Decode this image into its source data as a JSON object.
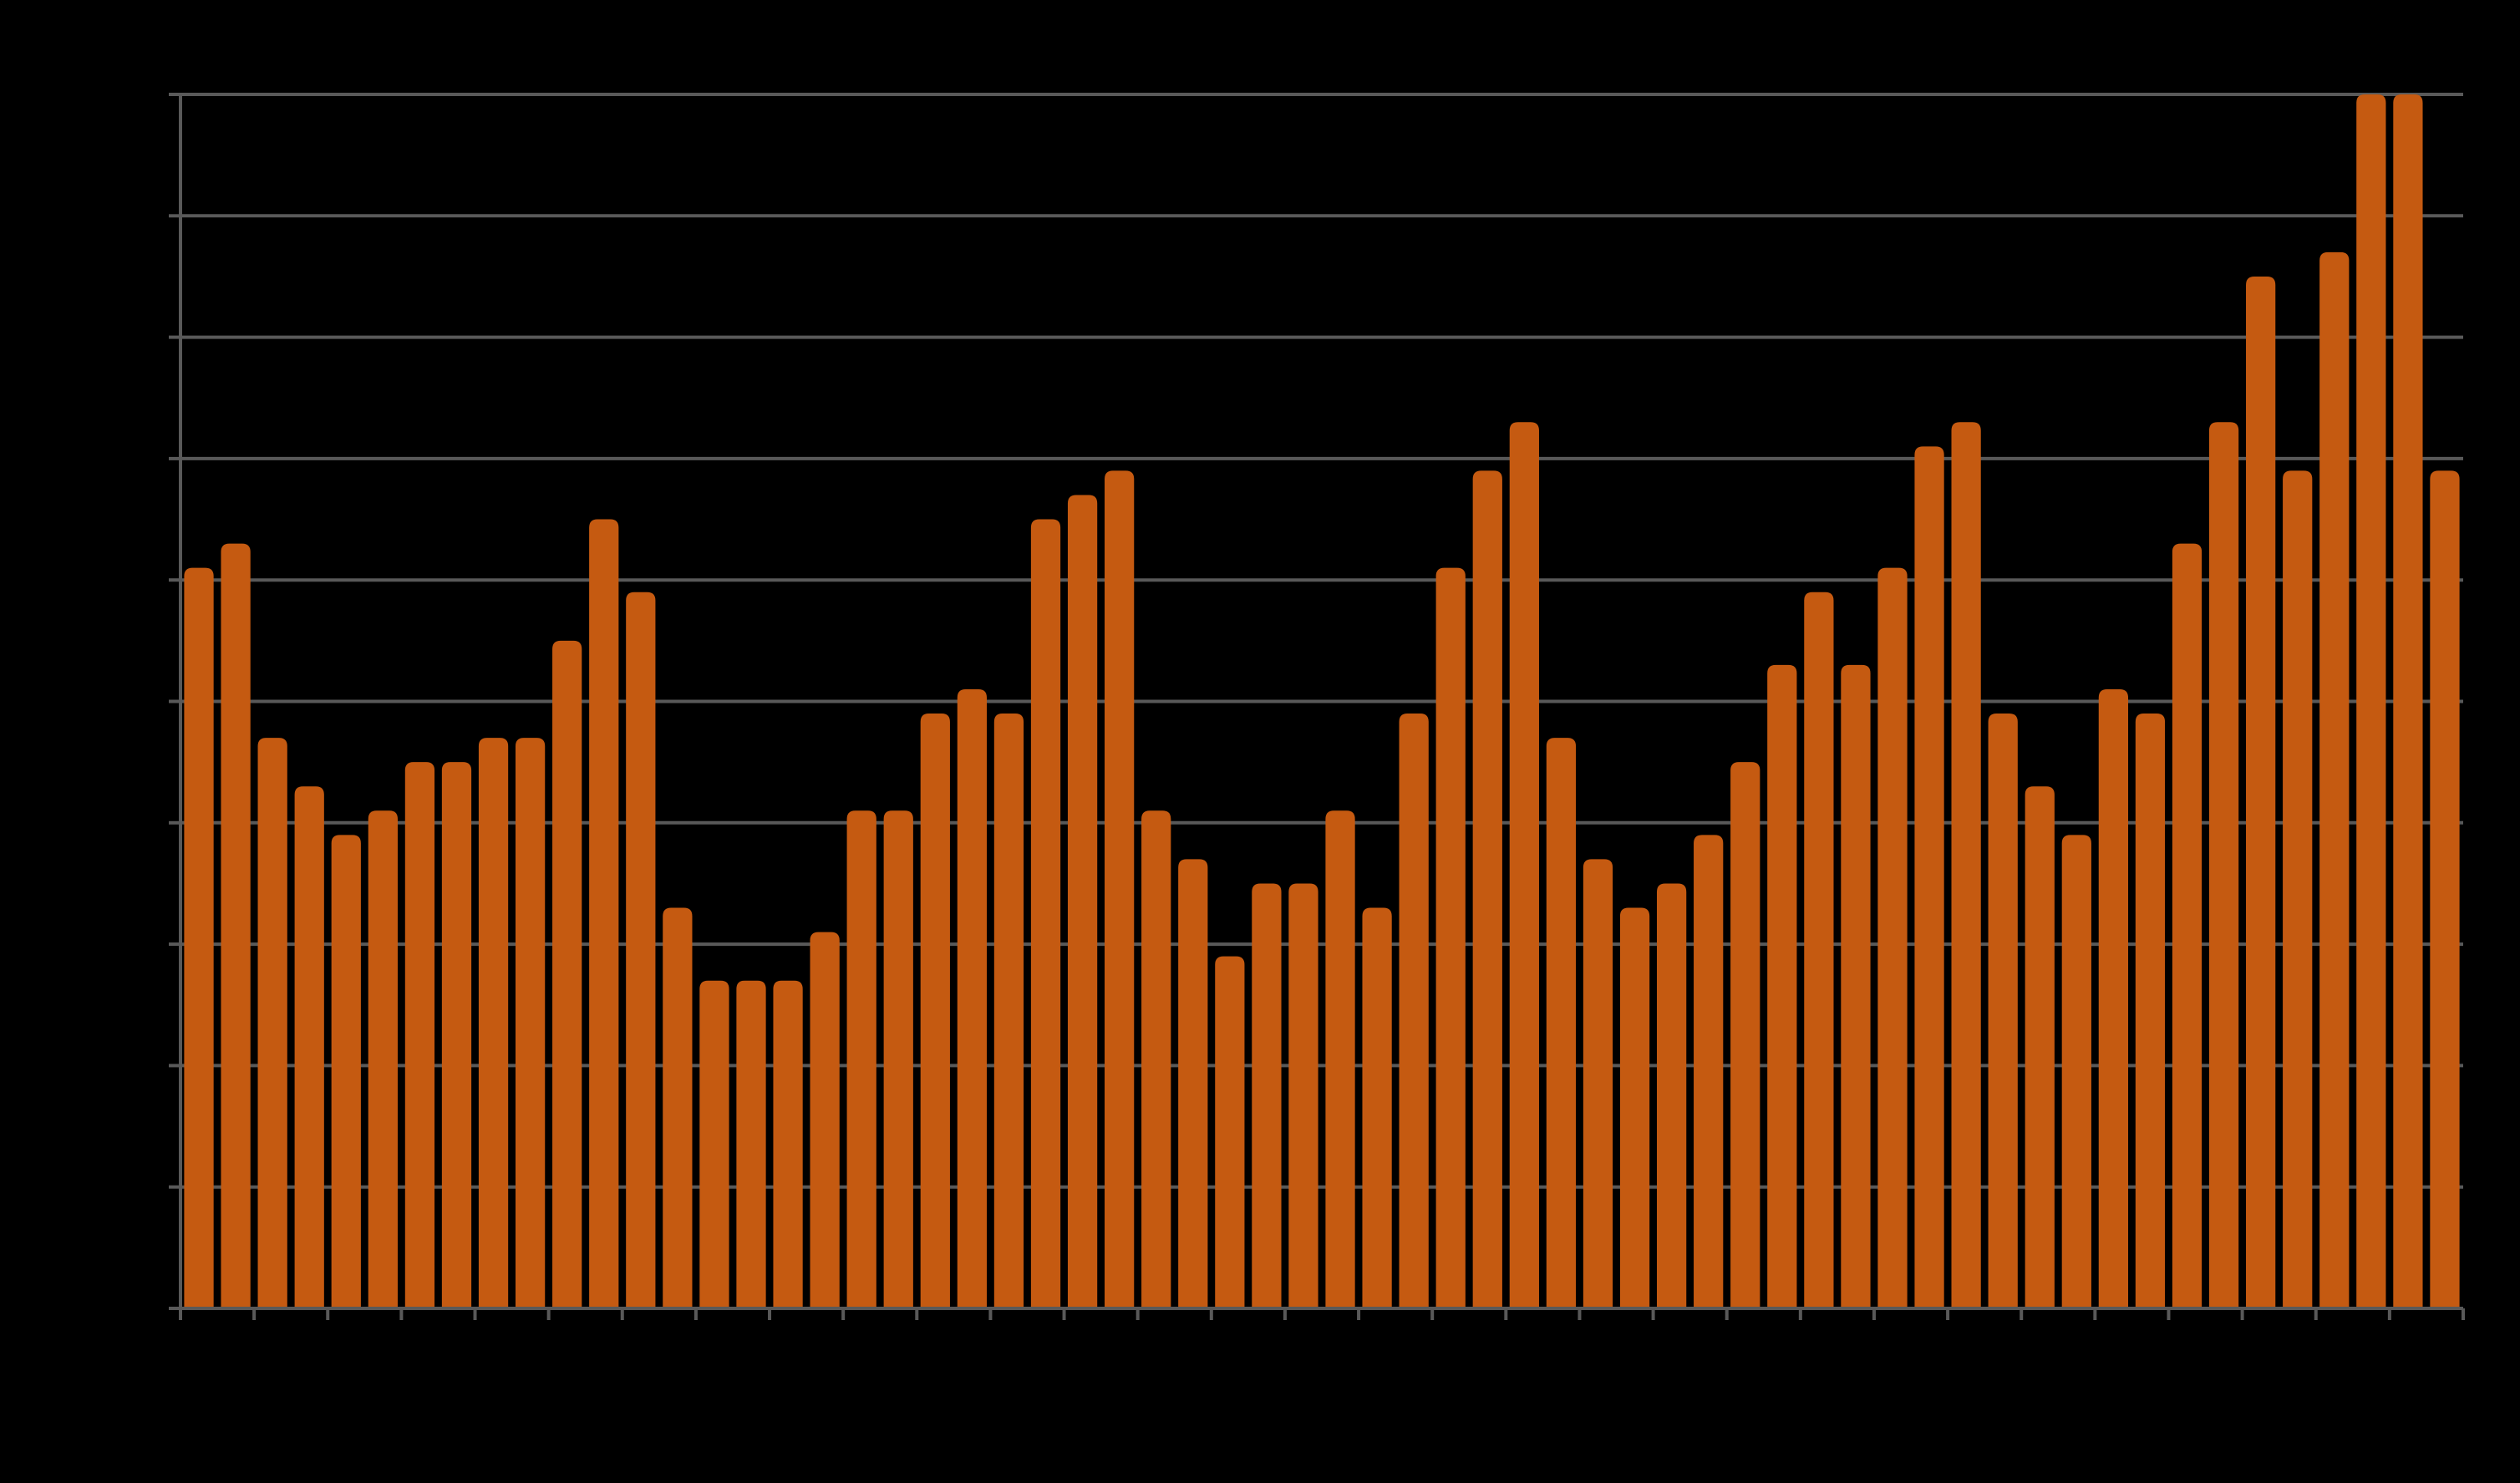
{
  "chart_data": {
    "type": "bar",
    "title": "",
    "xlabel": "",
    "ylabel": "",
    "ylim": [
      0,
      10
    ],
    "grid": true,
    "legend": "none",
    "series": [
      {
        "values": [
          6.1,
          6.3,
          4.7,
          4.3,
          3.9,
          4.1,
          4.5,
          4.5,
          4.7,
          4.7,
          5.5,
          6.5,
          5.9,
          3.3,
          2.7,
          2.7,
          2.7,
          3.1,
          4.1,
          4.1,
          4.9,
          5.1,
          4.9,
          6.5,
          6.7,
          6.9,
          4.1,
          3.7,
          2.9,
          3.5,
          3.5,
          4.1,
          3.3,
          4.9,
          6.1,
          6.9,
          7.3,
          4.7,
          3.7,
          3.3,
          3.5,
          3.9,
          4.5,
          5.3,
          5.9,
          5.3,
          6.1,
          7.1,
          7.3,
          4.9,
          4.3,
          3.9,
          5.1,
          4.9,
          6.3,
          7.3,
          8.5,
          6.9,
          8.7,
          10.0,
          10.0,
          6.9
        ]
      }
    ],
    "colors": {
      "bar": "#c55a11",
      "grid": "#595959",
      "axis": "#595959",
      "background": "#000000"
    }
  }
}
